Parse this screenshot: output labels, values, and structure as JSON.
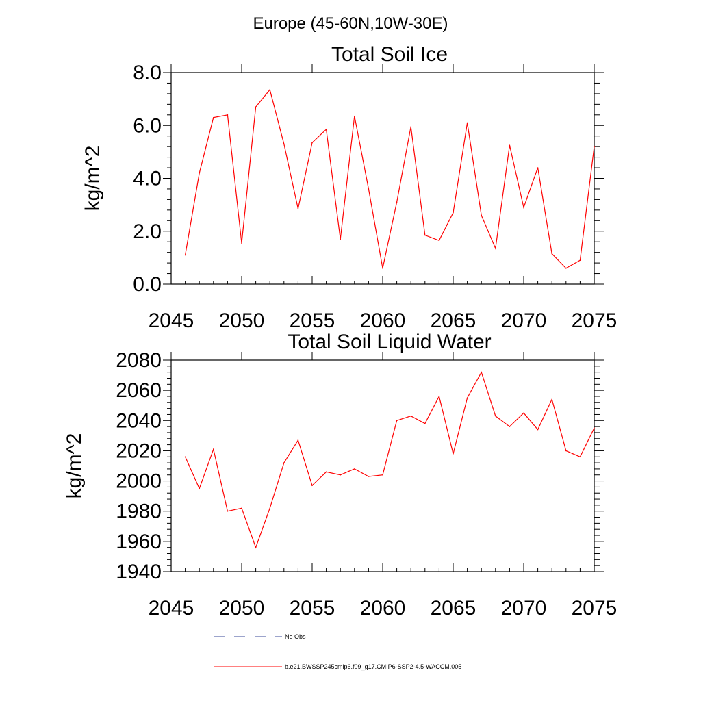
{
  "figure_title": "Europe (45-60N,10W-30E)",
  "colors": {
    "series": "#ff0000",
    "obs": "#3a4a9a",
    "axis": "#000000"
  },
  "legend": {
    "obs_label": "No Obs",
    "model_label": "b.e21.BWSSP245cmip6.f09_g17.CMIP6-SSP2-4.5-WACCM.005"
  },
  "chart_data": [
    {
      "type": "line",
      "title": "Total Soil Ice",
      "xlabel": "",
      "ylabel": "kg/m^2",
      "xlim": [
        2045,
        2075
      ],
      "ylim": [
        0,
        8
      ],
      "xticks": [
        2045,
        2050,
        2055,
        2060,
        2065,
        2070,
        2075
      ],
      "yticks": [
        0,
        2,
        4,
        6,
        8
      ],
      "ytick_labels": [
        "0.0",
        "2.0",
        "4.0",
        "6.0",
        "8.0"
      ],
      "x": [
        2046,
        2047,
        2048,
        2049,
        2050,
        2051,
        2052,
        2053,
        2054,
        2055,
        2056,
        2057,
        2058,
        2059,
        2060,
        2061,
        2062,
        2063,
        2064,
        2065,
        2066,
        2067,
        2068,
        2069,
        2070,
        2071,
        2072,
        2073,
        2074,
        2075
      ],
      "series": [
        {
          "name": "b.e21.BWSSP245cmip6.f09_g17.CMIP6-SSP2-4.5-WACCM.005",
          "values": [
            1.1,
            4.2,
            6.3,
            6.4,
            1.55,
            6.7,
            7.35,
            5.3,
            2.85,
            5.35,
            5.85,
            1.7,
            6.35,
            3.6,
            0.6,
            3.1,
            5.95,
            1.85,
            1.65,
            2.7,
            6.1,
            2.6,
            1.35,
            5.25,
            2.9,
            4.4,
            1.15,
            0.6,
            0.9,
            5.2
          ]
        }
      ]
    },
    {
      "type": "line",
      "title": "Total Soil Liquid Water",
      "xlabel": "",
      "ylabel": "kg/m^2",
      "xlim": [
        2045,
        2075
      ],
      "ylim": [
        1940,
        2080
      ],
      "xticks": [
        2045,
        2050,
        2055,
        2060,
        2065,
        2070,
        2075
      ],
      "yticks": [
        1940,
        1960,
        1980,
        2000,
        2020,
        2040,
        2060,
        2080
      ],
      "ytick_labels": [
        "1940",
        "1960",
        "1980",
        "2000",
        "2020",
        "2040",
        "2060",
        "2080"
      ],
      "x": [
        2046,
        2047,
        2048,
        2049,
        2050,
        2051,
        2052,
        2053,
        2054,
        2055,
        2056,
        2057,
        2058,
        2059,
        2060,
        2061,
        2062,
        2063,
        2064,
        2065,
        2066,
        2067,
        2068,
        2069,
        2070,
        2071,
        2072,
        2073,
        2074,
        2075
      ],
      "series": [
        {
          "name": "b.e21.BWSSP245cmip6.f09_g17.CMIP6-SSP2-4.5-WACCM.005",
          "values": [
            2016,
            1995,
            2021,
            1980,
            1982,
            1956,
            1982,
            2012,
            2027,
            1997,
            2006,
            2004,
            2008,
            2003,
            2004,
            2040,
            2043,
            2038,
            2056,
            2018,
            2055,
            2072,
            2043,
            2036,
            2045,
            2034,
            2054,
            2020,
            2016,
            2035
          ]
        }
      ]
    }
  ]
}
